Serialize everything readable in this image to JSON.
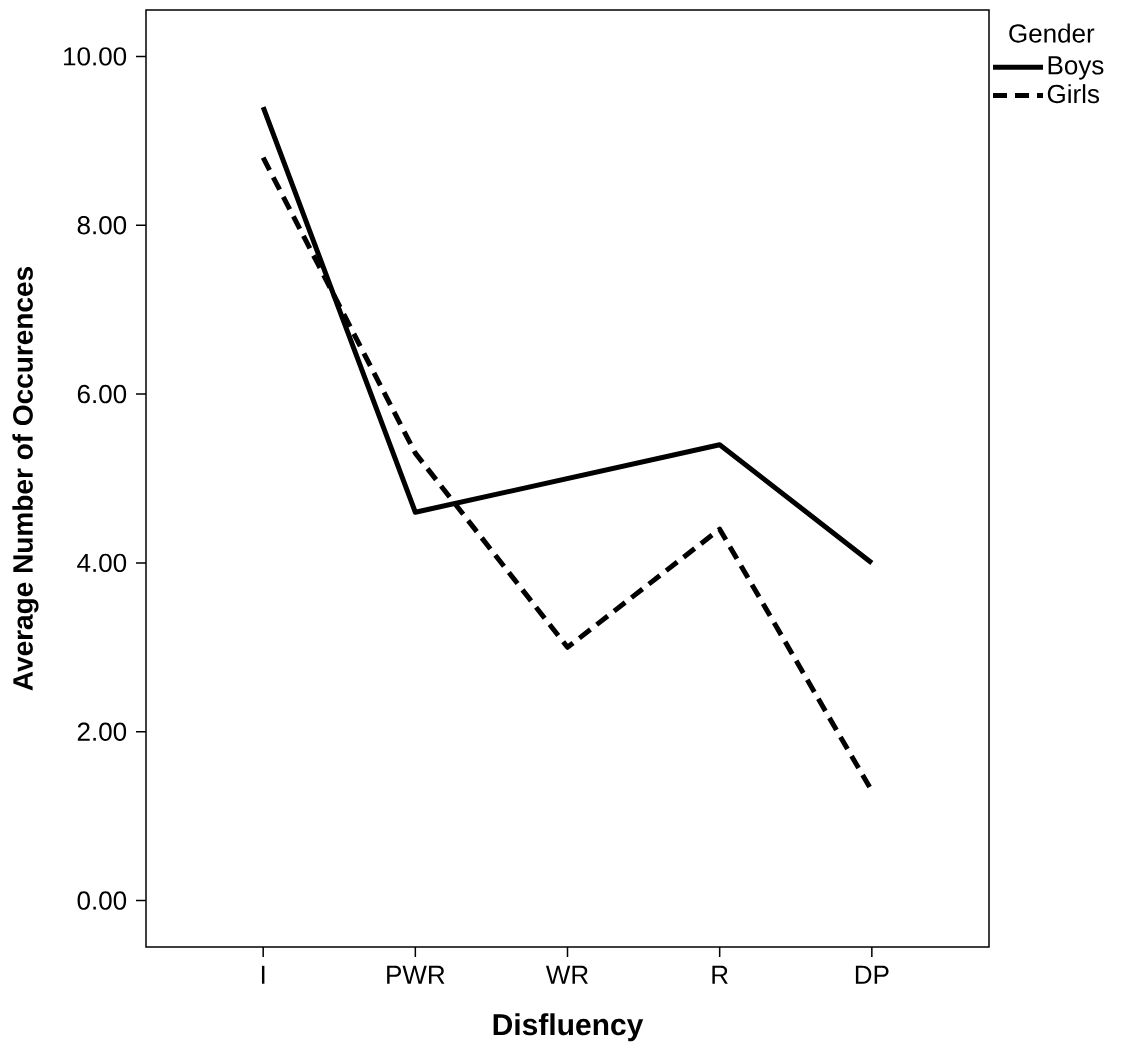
{
  "chart_data": {
    "type": "line",
    "xlabel": "Disfluency",
    "ylabel": "Average Number of Occurences",
    "legend_title": "Gender",
    "categories": [
      "I",
      "PWR",
      "WR",
      "R",
      "DP"
    ],
    "series": [
      {
        "name": "Boys",
        "color": "#000000",
        "line_style": "solid",
        "values": [
          9.4,
          4.6,
          5.0,
          5.4,
          4.0
        ]
      },
      {
        "name": "Girls",
        "color": "#000000",
        "line_style": "dashed",
        "values": [
          8.8,
          5.3,
          3.0,
          4.4,
          1.3
        ]
      }
    ],
    "ylim": [
      -0.55,
      10.55
    ],
    "yticks": [
      {
        "value": 0,
        "label": "0.00"
      },
      {
        "value": 2,
        "label": "2.00"
      },
      {
        "value": 4,
        "label": "4.00"
      },
      {
        "value": 6,
        "label": "6.00"
      },
      {
        "value": 8,
        "label": "8.00"
      },
      {
        "value": 10,
        "label": "10.00"
      }
    ],
    "legend": "top right",
    "grid": false,
    "marker": "none"
  }
}
